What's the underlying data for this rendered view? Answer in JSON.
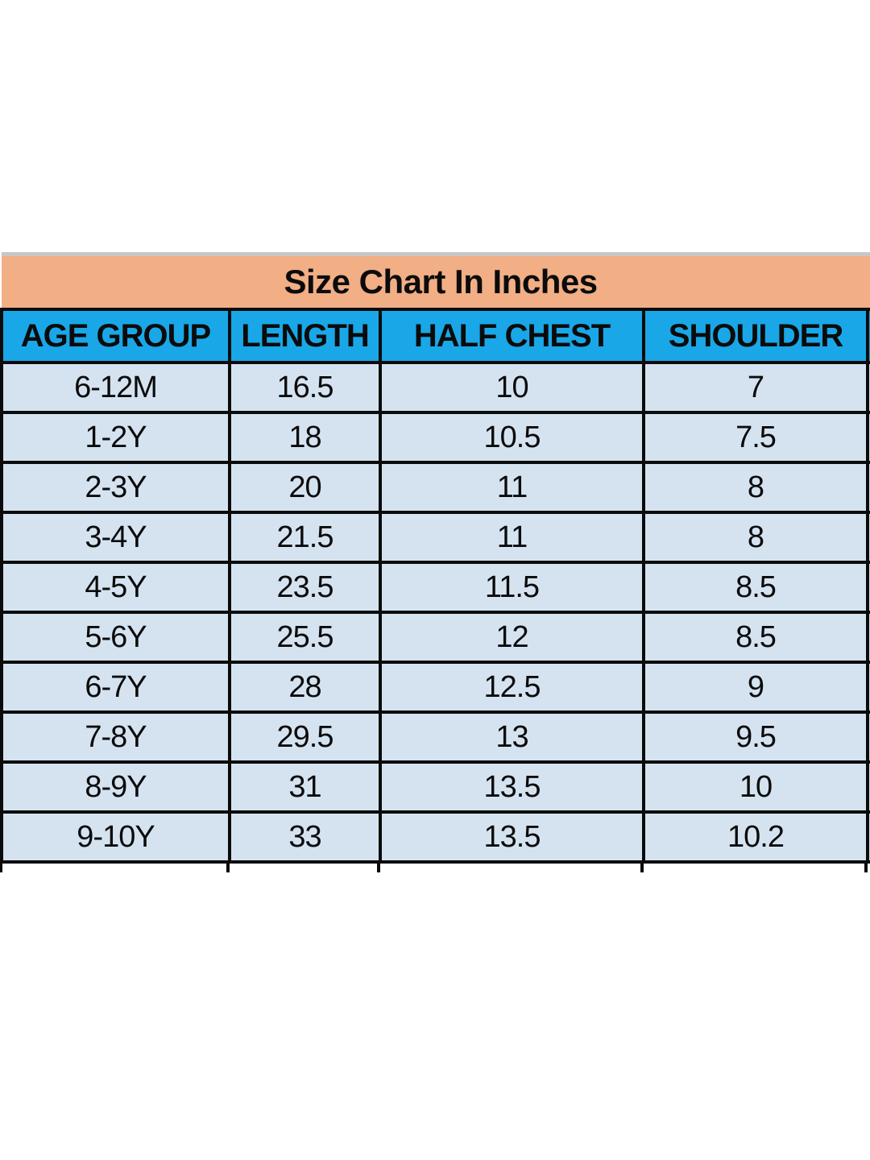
{
  "table": {
    "title": "Size Chart In Inches",
    "columns": [
      "AGE GROUP",
      "LENGTH",
      "HALF CHEST",
      "SHOULDER"
    ],
    "rows": [
      [
        "6-12M",
        "16.5",
        "10",
        "7"
      ],
      [
        "1-2Y",
        "18",
        "10.5",
        "7.5"
      ],
      [
        "2-3Y",
        "20",
        "11",
        "8"
      ],
      [
        "3-4Y",
        "21.5",
        "11",
        "8"
      ],
      [
        "4-5Y",
        "23.5",
        "11.5",
        "8.5"
      ],
      [
        "5-6Y",
        "25.5",
        "12",
        "8.5"
      ],
      [
        "6-7Y",
        "28",
        "12.5",
        "9"
      ],
      [
        "7-8Y",
        "29.5",
        "13",
        "9.5"
      ],
      [
        "8-9Y",
        "31",
        "13.5",
        "10"
      ],
      [
        "9-10Y",
        "33",
        "13.5",
        "10.2"
      ]
    ],
    "colors": {
      "title_bg": "#F2AE85",
      "header_bg": "#19A7E8",
      "row_bg": "#D5E3F1",
      "border": "#0B0B0B",
      "top_border": "#C9C6C4",
      "text": "#0B0B0B",
      "page_bg": "#FFFFFF"
    }
  },
  "chart_data": {
    "type": "table",
    "title": "Size Chart In Inches",
    "units": "inches",
    "columns": [
      "AGE GROUP",
      "LENGTH",
      "HALF CHEST",
      "SHOULDER"
    ],
    "rows": [
      [
        "6-12M",
        16.5,
        10,
        7
      ],
      [
        "1-2Y",
        18,
        10.5,
        7.5
      ],
      [
        "2-3Y",
        20,
        11,
        8
      ],
      [
        "3-4Y",
        21.5,
        11,
        8
      ],
      [
        "4-5Y",
        23.5,
        11.5,
        8.5
      ],
      [
        "5-6Y",
        25.5,
        12,
        8.5
      ],
      [
        "6-7Y",
        28,
        12.5,
        9
      ],
      [
        "7-8Y",
        29.5,
        13,
        9.5
      ],
      [
        "8-9Y",
        31,
        13.5,
        10
      ],
      [
        "9-10Y",
        33,
        13.5,
        10.2
      ]
    ]
  }
}
